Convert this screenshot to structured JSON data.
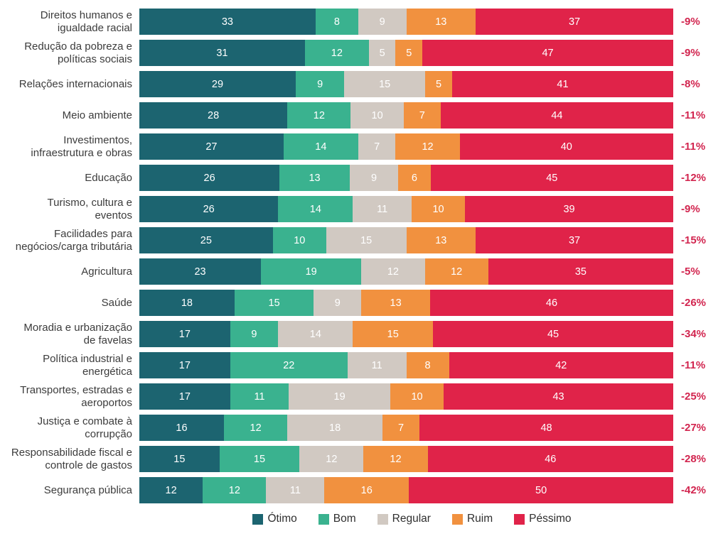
{
  "colors": {
    "background": "#ffffff",
    "category_text": "#3c3c3c",
    "value_text": "#ffffff",
    "net_change_text": "#d2254f"
  },
  "chart_data": {
    "type": "bar",
    "stacked": true,
    "orientation": "horizontal",
    "xlim": [
      0,
      100
    ],
    "grid": false,
    "legend_position": "bottom",
    "series": [
      {
        "name": "Ótimo",
        "color": "#1c6470"
      },
      {
        "name": "Bom",
        "color": "#3ab28f"
      },
      {
        "name": "Regular",
        "color": "#d1c9c2"
      },
      {
        "name": "Ruim",
        "color": "#f1913f"
      },
      {
        "name": "Péssimo",
        "color": "#e02349"
      }
    ],
    "rows": [
      {
        "category": "Direitos humanos e\nigualdade racial",
        "values": [
          33,
          8,
          9,
          13,
          37
        ],
        "net_change": "-9%"
      },
      {
        "category": "Redução da pobreza e\npolíticas sociais",
        "values": [
          31,
          12,
          5,
          5,
          47
        ],
        "net_change": "-9%"
      },
      {
        "category": "Relações internacionais",
        "values": [
          29,
          9,
          15,
          5,
          41
        ],
        "net_change": "-8%"
      },
      {
        "category": "Meio ambiente",
        "values": [
          28,
          12,
          10,
          7,
          44
        ],
        "net_change": "-11%"
      },
      {
        "category": "Investimentos,\ninfraestrutura e obras",
        "values": [
          27,
          14,
          7,
          12,
          40
        ],
        "net_change": "-11%"
      },
      {
        "category": "Educação",
        "values": [
          26,
          13,
          9,
          6,
          45
        ],
        "net_change": "-12%"
      },
      {
        "category": "Turismo, cultura e\neventos",
        "values": [
          26,
          14,
          11,
          10,
          39
        ],
        "net_change": "-9%"
      },
      {
        "category": "Facilidades para\nnegócios/carga tributária",
        "values": [
          25,
          10,
          15,
          13,
          37
        ],
        "net_change": "-15%"
      },
      {
        "category": "Agricultura",
        "values": [
          23,
          19,
          12,
          12,
          35
        ],
        "net_change": "-5%"
      },
      {
        "category": "Saúde",
        "values": [
          18,
          15,
          9,
          13,
          46
        ],
        "net_change": "-26%"
      },
      {
        "category": "Moradia e urbanização\nde favelas",
        "values": [
          17,
          9,
          14,
          15,
          45
        ],
        "net_change": "-34%"
      },
      {
        "category": "Política industrial e\nenergética",
        "values": [
          17,
          22,
          11,
          8,
          42
        ],
        "net_change": "-11%"
      },
      {
        "category": "Transportes, estradas e\naeroportos",
        "values": [
          17,
          11,
          19,
          10,
          43
        ],
        "net_change": "-25%"
      },
      {
        "category": "Justiça e combate à\ncorrupção",
        "values": [
          16,
          12,
          18,
          7,
          48
        ],
        "net_change": "-27%"
      },
      {
        "category": "Responsabilidade fiscal e\ncontrole de gastos",
        "values": [
          15,
          15,
          12,
          12,
          46
        ],
        "net_change": "-28%"
      },
      {
        "category": "Segurança pública",
        "values": [
          12,
          12,
          11,
          16,
          50
        ],
        "net_change": "-42%"
      }
    ]
  }
}
